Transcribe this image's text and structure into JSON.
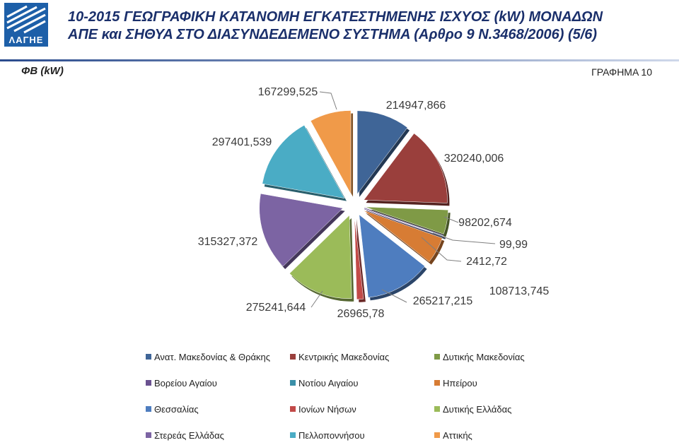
{
  "header": {
    "logo_text": "ΛΑΓΗΕ",
    "title_line1": "10-2015 ΓΕΩΓΡΑΦΙΚΗ ΚΑΤΑΝΟΜΗ ΕΓΚΑΤΕΣΤΗΜΕΝΗΣ ΙΣΧΥΟΣ (kW) ΜΟΝΑΔΩΝ",
    "title_line2": "ΑΠΕ και ΣΗΘΥΑ ΣΤΟ ΔΙΑΣΥΝΔΕΔΕΜΕΝΟ ΣΥΣΤΗΜΑ (Αρθρο 9 Ν.3468/2006) (5/6)",
    "subtitle": "ΦΒ (kW)",
    "graph_number": "ΓΡΑΦΗΜΑ 10"
  },
  "colors": {
    "brand": "#1d5fa8",
    "title": "#1a2f6b"
  },
  "chart_data": {
    "type": "pie",
    "title": "",
    "categories": [
      "Ανατ. Μακεδονίας & Θράκης",
      "Κεντρικής Μακεδονίας",
      "Δυτικής Μακεδονίας",
      "Βορείου Αγαίου",
      "Νοτίου Αιγαίου",
      "Ηπείρου",
      "Θεσσαλίας",
      "Ιονίων Νήσων",
      "Δυτικής Ελλάδας",
      "Στερεάς Ελλάδας",
      "Πελλοποννήσου",
      "Αττικής"
    ],
    "values": [
      214947.866,
      320240.006,
      98202.674,
      99.99,
      2412.72,
      108713.745,
      265217.215,
      26965.78,
      275241.644,
      315327.372,
      297401.539,
      167299.525
    ],
    "value_labels": [
      "214947,866",
      "320240,006",
      "98202,674",
      "99,99",
      "2412,72",
      "108713,745",
      "265217,215",
      "26965,78",
      "275241,644",
      "315327,372",
      "297401,539",
      "167299,525"
    ],
    "colors": [
      "#3f6597",
      "#9a3f3c",
      "#7f9a46",
      "#6a5190",
      "#3a8fa8",
      "#d77c34",
      "#4e7dbf",
      "#c24a48",
      "#9bbb59",
      "#7c64a3",
      "#4aacc5",
      "#f09a49"
    ],
    "legend_position": "bottom"
  }
}
